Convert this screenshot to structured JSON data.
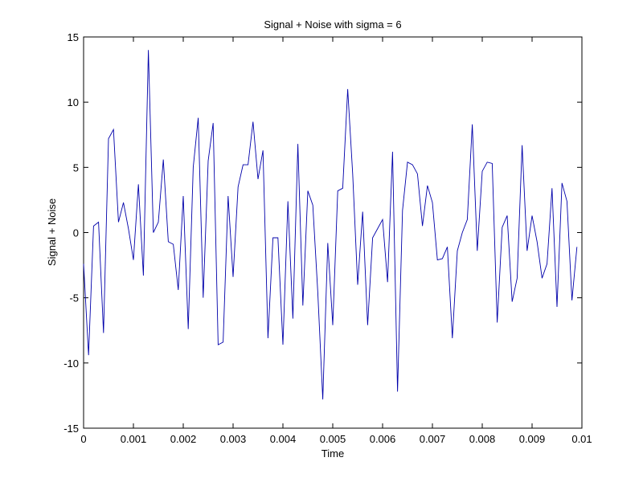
{
  "chart_data": {
    "type": "line",
    "title": "Signal + Noise with sigma = 6",
    "xlabel": "Time",
    "ylabel": "Signal + Noise",
    "xlim": [
      0,
      0.01
    ],
    "ylim": [
      -15,
      15
    ],
    "x_ticks": [
      0,
      0.001,
      0.002,
      0.003,
      0.004,
      0.005,
      0.006,
      0.007,
      0.008,
      0.009,
      0.01
    ],
    "x_tick_labels": [
      "0",
      "0.001",
      "0.002",
      "0.003",
      "0.004",
      "0.005",
      "0.006",
      "0.007",
      "0.008",
      "0.009",
      "0.01"
    ],
    "y_ticks": [
      -15,
      -10,
      -5,
      0,
      5,
      10,
      15
    ],
    "y_tick_labels": [
      "-15",
      "-10",
      "-5",
      "0",
      "5",
      "10",
      "15"
    ],
    "grid": false,
    "line_color": "#0000aa",
    "x_start": 0,
    "x_step": 0.0001,
    "series": [
      {
        "values": [
          -2.4,
          -9.4,
          0.5,
          0.8,
          -7.7,
          7.2,
          7.9,
          0.8,
          2.3,
          0.3,
          -2.1,
          3.7,
          -3.3,
          14.0,
          0.0,
          0.8,
          5.6,
          -0.7,
          -0.9,
          -4.4,
          2.8,
          -7.4,
          5.0,
          8.8,
          -5.0,
          5.5,
          8.4,
          -8.6,
          -8.4,
          2.8,
          -3.4,
          3.5,
          5.2,
          5.2,
          8.5,
          4.1,
          6.3,
          -8.1,
          -0.4,
          -0.4,
          -8.6,
          2.4,
          -6.6,
          6.8,
          -5.6,
          3.2,
          2.1,
          -4.6,
          -12.8,
          -0.8,
          -7.1,
          3.2,
          3.4,
          11.0,
          4.5,
          -4.0,
          1.6,
          -7.1,
          -0.4,
          0.3,
          1.0,
          -3.8,
          6.2,
          -12.2,
          1.7,
          5.4,
          5.2,
          4.5,
          0.5,
          3.6,
          2.3,
          -2.1,
          -2.0,
          -1.1,
          -8.1,
          -1.4,
          0.0,
          1.0,
          8.3,
          -1.4,
          4.7,
          5.4,
          5.3,
          -6.9,
          0.4,
          1.3,
          -5.3,
          -3.5,
          6.7,
          -1.4,
          1.3,
          -0.7,
          -3.5,
          -2.4,
          3.4,
          -5.7,
          3.8,
          2.4,
          -5.2,
          -1.1
        ]
      }
    ]
  }
}
